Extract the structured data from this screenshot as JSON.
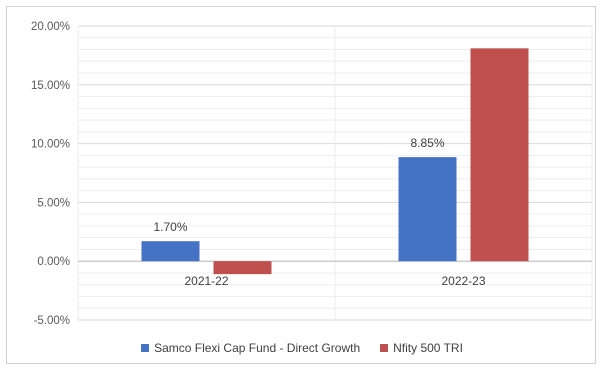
{
  "chart_data": {
    "type": "bar",
    "title": "",
    "xlabel": "",
    "ylabel": "",
    "categories": [
      "2021-22",
      "2022-23"
    ],
    "series": [
      {
        "name": "Samco Flexi Cap Fund - Direct Growth",
        "values": [
          1.7,
          8.85
        ],
        "color": "#4472c4",
        "data_labels": [
          "1.70%",
          "8.85%"
        ]
      },
      {
        "name": "Nfity 500 TRI",
        "values": [
          -1.1,
          18.1
        ],
        "color": "#c0504d",
        "data_labels": [
          "",
          ""
        ]
      }
    ],
    "ylim": [
      -5,
      20
    ],
    "yticks": [
      20,
      15,
      10,
      5,
      0,
      -5
    ],
    "ytick_labels": [
      "20.00%",
      "15.00%",
      "10.00%",
      "5.00%",
      "0.00%",
      "-5.00%"
    ],
    "grid": true,
    "legend_position": "bottom"
  }
}
